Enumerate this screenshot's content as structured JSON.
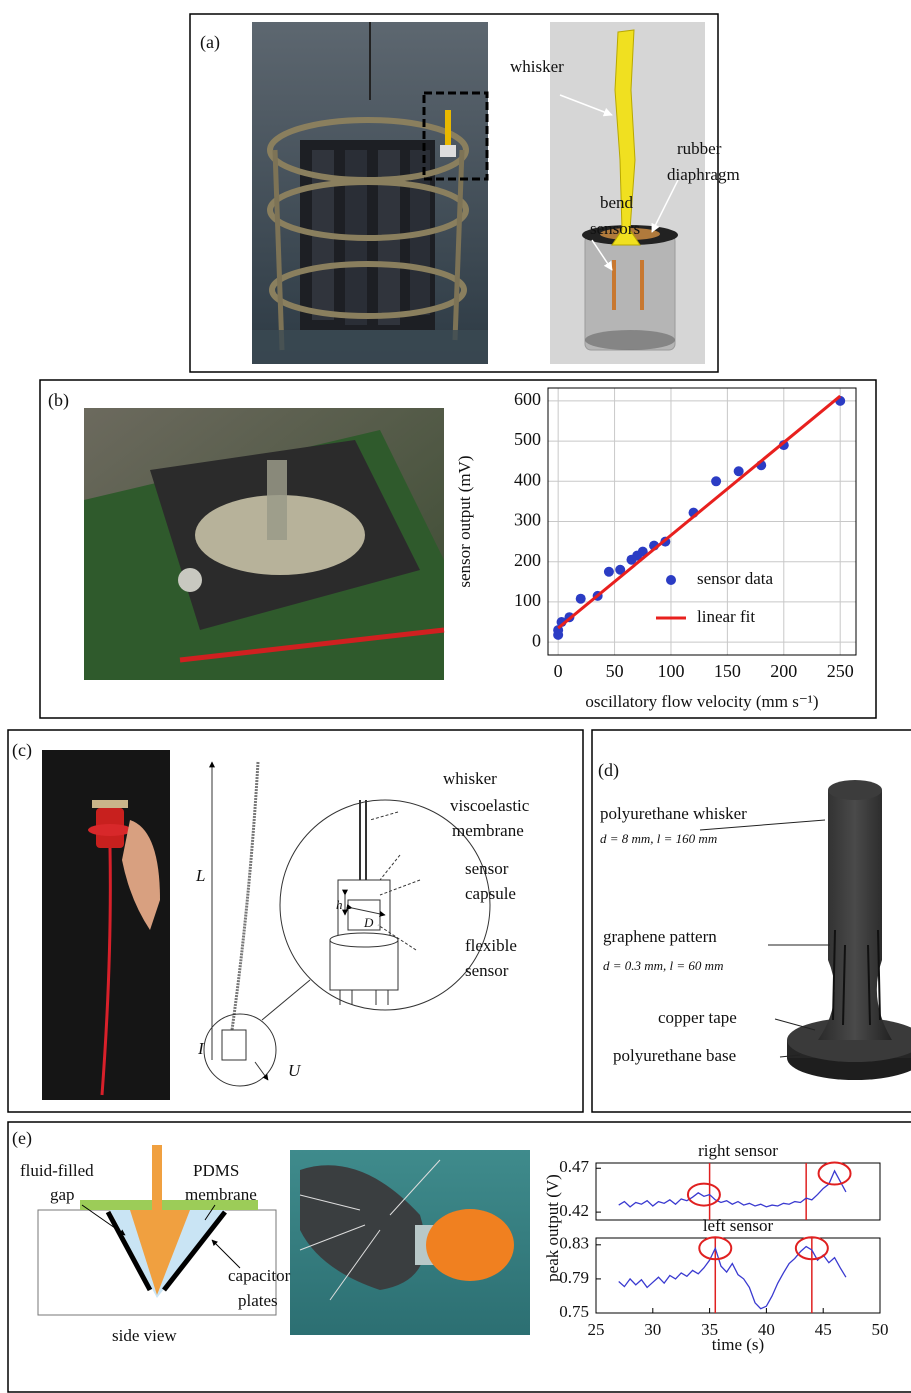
{
  "panels": [
    {
      "label": "(a)",
      "annotations": [
        [
          "whisker"
        ],
        [
          "rubber",
          "diaphragm"
        ],
        [
          "bend",
          "sensors"
        ]
      ]
    },
    {
      "label": "(b)"
    },
    {
      "label": "(c)",
      "annotations": [
        [
          "whisker"
        ],
        [
          "viscoelastic",
          "membrane"
        ],
        [
          "sensor",
          "capsule"
        ],
        [
          "flexible",
          "sensor"
        ],
        [
          "L"
        ],
        [
          "I"
        ],
        [
          "U"
        ],
        [
          "h"
        ],
        [
          "D"
        ]
      ]
    },
    {
      "label": "(d)",
      "annotations": [
        [
          "polyurethane whisker",
          "d = 8 mm, l = 160 mm"
        ],
        [
          "graphene pattern",
          "d = 0.3 mm, l = 60 mm"
        ],
        [
          "copper tape"
        ],
        [
          "polyurethane base"
        ]
      ]
    },
    {
      "label": "(e)",
      "annotations": [
        [
          "fluid-filled",
          "gap"
        ],
        [
          "PDMS",
          "membrane"
        ],
        [
          "capacitor",
          "plates"
        ],
        [
          "side view"
        ]
      ]
    }
  ],
  "chart_data": [
    {
      "type": "scatter",
      "xlabel": "oscillatory flow velocity (mm s⁻¹)",
      "ylabel": "sensor output (mV)",
      "xlim": [
        -9,
        264
      ],
      "ylim": [
        -32,
        632
      ],
      "xticks": [
        0,
        50,
        100,
        150,
        200,
        250
      ],
      "yticks": [
        0,
        100,
        200,
        300,
        400,
        500,
        600
      ],
      "grid": true,
      "legend": "lower right",
      "series": [
        {
          "name": "sensor data",
          "type": "scatter",
          "color": "#2b3cc4",
          "x": [
            0,
            0,
            3,
            10,
            20,
            35,
            45,
            55,
            65,
            70,
            75,
            85,
            95,
            120,
            140,
            160,
            180,
            200,
            250
          ],
          "values": [
            18,
            30,
            50,
            62,
            108,
            115,
            175,
            180,
            205,
            215,
            225,
            240,
            250,
            322,
            400,
            425,
            440,
            490,
            600
          ]
        },
        {
          "name": "linear fit",
          "type": "line",
          "color": "#e8201e",
          "x": [
            0,
            250
          ],
          "values": [
            35,
            612
          ]
        }
      ]
    },
    {
      "type": "line",
      "title": "right sensor",
      "ylabel": "peak output (V)",
      "xlim": [
        25,
        50
      ],
      "ylim": [
        0.411,
        0.476
      ],
      "yticks": [
        0.42,
        0.47
      ],
      "color": "#3a3ad0",
      "x": [
        27,
        27.5,
        28,
        28.5,
        29,
        29.5,
        30,
        30.5,
        31,
        31.5,
        32,
        32.5,
        33,
        33.5,
        34,
        34.5,
        35,
        35.5,
        36,
        36.5,
        37,
        37.5,
        38,
        38.5,
        39,
        39.5,
        40,
        40.5,
        41,
        41.5,
        42,
        42.5,
        43,
        43.5,
        44,
        44.5,
        45,
        45.5,
        46,
        46.5,
        47
      ],
      "values": [
        0.428,
        0.432,
        0.426,
        0.431,
        0.429,
        0.433,
        0.427,
        0.432,
        0.43,
        0.434,
        0.429,
        0.435,
        0.433,
        0.437,
        0.442,
        0.438,
        0.44,
        0.434,
        0.431,
        0.433,
        0.429,
        0.432,
        0.428,
        0.43,
        0.427,
        0.429,
        0.426,
        0.428,
        0.427,
        0.43,
        0.429,
        0.432,
        0.431,
        0.436,
        0.434,
        0.44,
        0.447,
        0.452,
        0.467,
        0.455,
        0.443
      ],
      "vlines": [
        35,
        43.5
      ],
      "vline_color": "#e02020",
      "highlights": [
        {
          "x": 34.5,
          "y": 0.44
        },
        {
          "x": 46,
          "y": 0.464
        }
      ],
      "highlight_color": "#e02020"
    },
    {
      "type": "line",
      "title": "left sensor",
      "xlabel": "time (s)",
      "xlim": [
        25,
        50
      ],
      "ylim": [
        0.75,
        0.838
      ],
      "xticks": [
        25,
        30,
        35,
        40,
        45,
        50
      ],
      "yticks": [
        0.75,
        0.79,
        0.83
      ],
      "color": "#3a3ad0",
      "x": [
        27,
        27.5,
        28,
        28.5,
        29,
        29.5,
        30,
        30.5,
        31,
        31.5,
        32,
        32.5,
        33,
        33.5,
        34,
        34.5,
        35,
        35.5,
        36,
        36.5,
        37,
        37.5,
        38,
        38.5,
        39,
        39.5,
        40,
        40.5,
        41,
        41.5,
        42,
        42.5,
        43,
        43.5,
        44,
        44.5,
        45,
        45.5,
        46,
        46.5,
        47
      ],
      "values": [
        0.787,
        0.781,
        0.79,
        0.783,
        0.789,
        0.78,
        0.786,
        0.792,
        0.785,
        0.794,
        0.79,
        0.797,
        0.793,
        0.8,
        0.796,
        0.803,
        0.812,
        0.826,
        0.805,
        0.798,
        0.808,
        0.795,
        0.79,
        0.78,
        0.762,
        0.755,
        0.758,
        0.77,
        0.785,
        0.797,
        0.808,
        0.814,
        0.822,
        0.828,
        0.824,
        0.812,
        0.818,
        0.809,
        0.815,
        0.803,
        0.792
      ],
      "vlines": [
        35.5,
        44
      ],
      "vline_color": "#e02020",
      "highlights": [
        {
          "x": 35.5,
          "y": 0.826
        },
        {
          "x": 44,
          "y": 0.826
        }
      ],
      "highlight_color": "#e02020"
    }
  ]
}
